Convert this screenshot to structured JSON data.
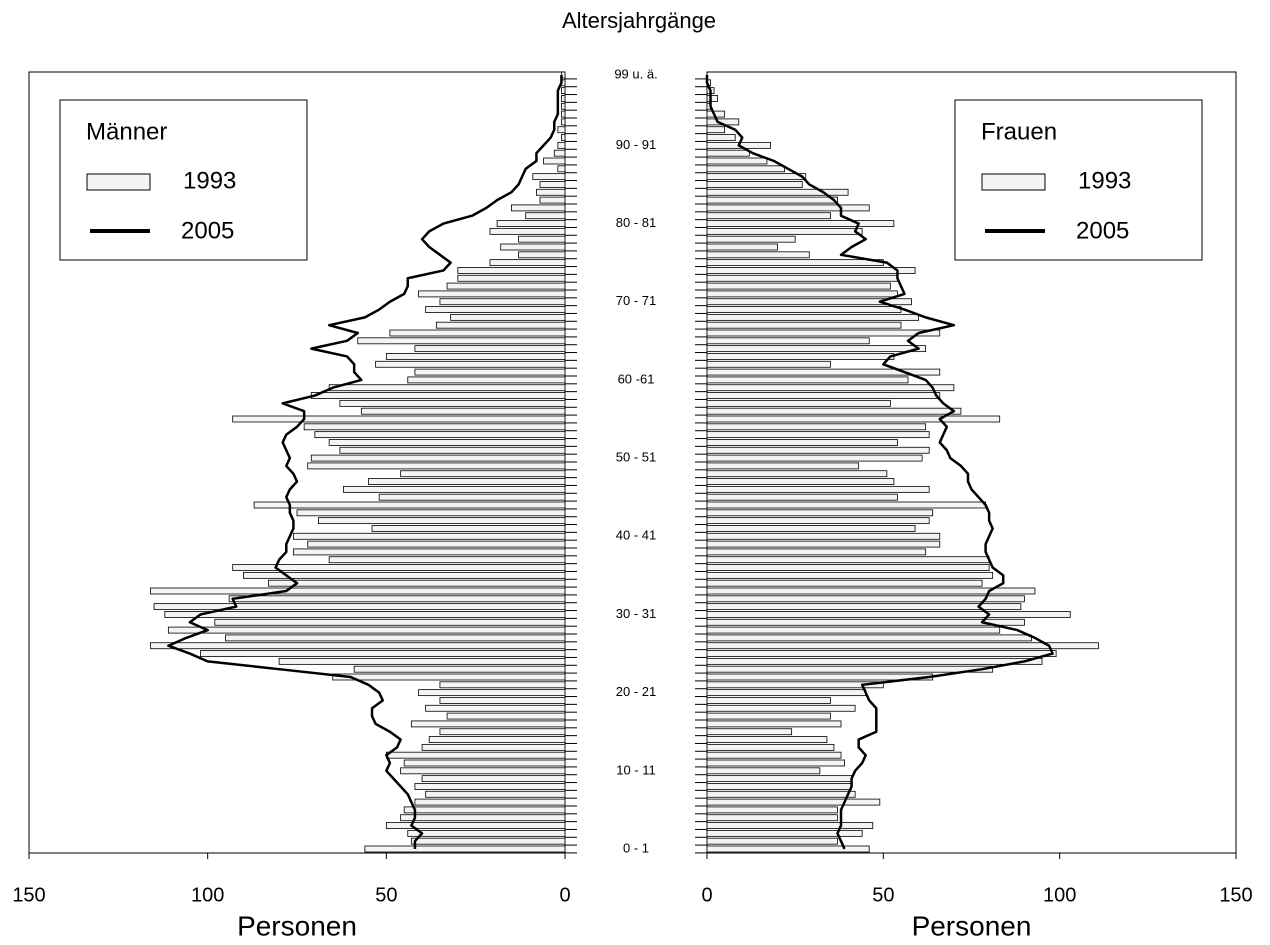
{
  "chart_data": {
    "type": "population-pyramid",
    "title": "Altersjahrgänge",
    "xlabel": "Personen",
    "categories": [
      "0 - 1",
      null,
      null,
      null,
      null,
      null,
      null,
      null,
      null,
      null,
      "10 - 11",
      null,
      null,
      null,
      null,
      null,
      null,
      null,
      null,
      null,
      "20 - 21",
      null,
      null,
      null,
      null,
      null,
      null,
      null,
      null,
      null,
      "30 - 31",
      null,
      null,
      null,
      null,
      null,
      null,
      null,
      null,
      null,
      "40 - 41",
      null,
      null,
      null,
      null,
      null,
      null,
      null,
      null,
      null,
      "50 - 51",
      null,
      null,
      null,
      null,
      null,
      null,
      null,
      null,
      null,
      "60 -61",
      null,
      null,
      null,
      null,
      null,
      null,
      null,
      null,
      null,
      "70 - 71",
      null,
      null,
      null,
      null,
      null,
      null,
      null,
      null,
      null,
      "80 - 81",
      null,
      null,
      null,
      null,
      null,
      null,
      null,
      null,
      null,
      "90 - 91",
      null,
      null,
      null,
      null,
      null,
      null,
      null,
      null,
      "99 u. ä."
    ],
    "panels": [
      {
        "legend_title": "Männer",
        "xlim": [
          150,
          0
        ],
        "xticks": [
          150,
          100,
          50,
          0
        ],
        "series": [
          {
            "name": "1993",
            "color": "#f4f4f4",
            "values": [
              56,
              43,
              44,
              50,
              46,
              45,
              42,
              39,
              42,
              40,
              46,
              45,
              50,
              40,
              38,
              35,
              43,
              33,
              39,
              35,
              41,
              35,
              65,
              59,
              80,
              102,
              116,
              95,
              111,
              98,
              112,
              115,
              94,
              116,
              83,
              90,
              93,
              66,
              76,
              72,
              76,
              54,
              69,
              75,
              87,
              52,
              62,
              55,
              46,
              72,
              71,
              63,
              66,
              70,
              73,
              93,
              57,
              63,
              71,
              66,
              44,
              42,
              53,
              50,
              42,
              58,
              49,
              36,
              32,
              39,
              35,
              41,
              33,
              30,
              30,
              21,
              13,
              18,
              13,
              21,
              19,
              11,
              15,
              7,
              8,
              7,
              9,
              2,
              6,
              3,
              2,
              1,
              2,
              1,
              1,
              1,
              1,
              1,
              1,
              1
            ]
          },
          {
            "name": "2005",
            "color": "#000000",
            "values": [
              42,
              42,
              40,
              43,
              42,
              42,
              43,
              44,
              46,
              48,
              50,
              49,
              50,
              47,
              46,
              49,
              53,
              54,
              54,
              51,
              52,
              55,
              60,
              80,
              100,
              105,
              111,
              106,
              100,
              105,
              102,
              92,
              93,
              78,
              75,
              78,
              81,
              80,
              78,
              78,
              77,
              76,
              76,
              77,
              77,
              78,
              77,
              75,
              76,
              78,
              77,
              78,
              79,
              78,
              75,
              73,
              73,
              79,
              70,
              65,
              57,
              59,
              59,
              61,
              71,
              61,
              58,
              66,
              56,
              52,
              49,
              45,
              44,
              44,
              34,
              32,
              35,
              38,
              40,
              38,
              34,
              26,
              22,
              19,
              15,
              13,
              12,
              11,
              8,
              8,
              6,
              4,
              3,
              3,
              2,
              2,
              2,
              2,
              1,
              1
            ]
          }
        ]
      },
      {
        "legend_title": "Frauen",
        "xlim": [
          0,
          150
        ],
        "xticks": [
          0,
          50,
          100,
          150
        ],
        "series": [
          {
            "name": "1993",
            "color": "#f4f4f4",
            "values": [
              46,
              37,
              44,
              47,
              37,
              37,
              49,
              42,
              41,
              41,
              32,
              39,
              38,
              36,
              34,
              24,
              38,
              35,
              42,
              35,
              45,
              50,
              64,
              81,
              95,
              99,
              111,
              92,
              83,
              90,
              103,
              89,
              90,
              93,
              78,
              81,
              80,
              80,
              62,
              66,
              66,
              59,
              63,
              64,
              79,
              54,
              63,
              53,
              51,
              43,
              61,
              63,
              54,
              63,
              62,
              83,
              72,
              52,
              66,
              70,
              57,
              66,
              35,
              53,
              62,
              46,
              66,
              55,
              60,
              55,
              58,
              54,
              52,
              54,
              59,
              50,
              29,
              20,
              25,
              44,
              53,
              35,
              46,
              37,
              40,
              27,
              28,
              22,
              17,
              12,
              18,
              8,
              5,
              9,
              5,
              1,
              3,
              2,
              1,
              0
            ]
          },
          {
            "name": "2005",
            "color": "#000000",
            "values": [
              39,
              38,
              37,
              38,
              38,
              38,
              39,
              40,
              41,
              41,
              42,
              44,
              45,
              43,
              43,
              48,
              48,
              48,
              48,
              46,
              45,
              44,
              63,
              78,
              90,
              98,
              97,
              93,
              88,
              78,
              80,
              77,
              79,
              80,
              84,
              84,
              81,
              80,
              79,
              79,
              80,
              81,
              80,
              80,
              79,
              77,
              75,
              74,
              74,
              72,
              69,
              68,
              66,
              67,
              68,
              66,
              70,
              67,
              65,
              64,
              62,
              56,
              50,
              52,
              60,
              57,
              60,
              70,
              62,
              56,
              49,
              56,
              55,
              54,
              54,
              51,
              38,
              41,
              45,
              42,
              43,
              38,
              38,
              36,
              33,
              29,
              27,
              23,
              19,
              13,
              9,
              10,
              8,
              3,
              2,
              1,
              1,
              1,
              0,
              0
            ]
          }
        ]
      }
    ]
  }
}
